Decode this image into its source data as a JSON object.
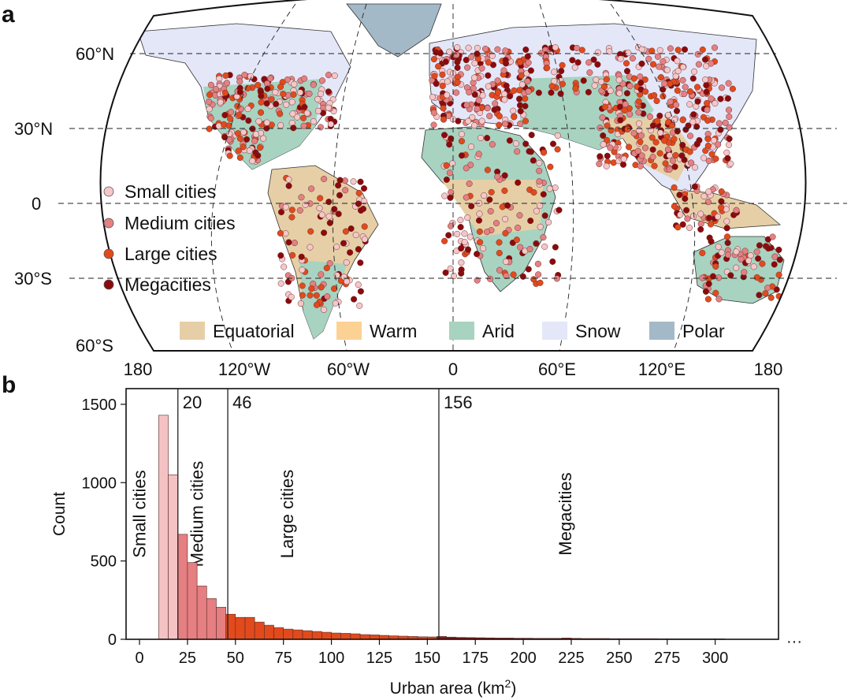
{
  "panel_a": {
    "label": "a",
    "lat_labels": [
      "60°N",
      "30°N",
      "0",
      "30°S",
      "60°S"
    ],
    "lon_labels": [
      "180",
      "120°W",
      "60°W",
      "0",
      "60°E",
      "120°E",
      "180"
    ],
    "city_legend": [
      {
        "label": "Small cities",
        "color": "#f5c7c9"
      },
      {
        "label": "Medium cities",
        "color": "#e38183"
      },
      {
        "label": "Large cities",
        "color": "#e24a1c"
      },
      {
        "label": "Megacities",
        "color": "#8b0a0c"
      }
    ],
    "climate_legend": [
      {
        "label": "Equatorial",
        "color": "#e6cfa6"
      },
      {
        "label": "Warm",
        "color": "#fbd294"
      },
      {
        "label": "Arid",
        "color": "#a8d3c0"
      },
      {
        "label": "Snow",
        "color": "#e4e7f8"
      },
      {
        "label": "Polar",
        "color": "#a4b9c7"
      }
    ]
  },
  "panel_b": {
    "label": "b",
    "ellipsis": "···",
    "chart_data": {
      "type": "bar",
      "xlabel": "Urban area (km",
      "xlabel_sup": "2",
      "xlabel_close": ")",
      "ylabel": "Count",
      "xlim": [
        -7,
        333
      ],
      "ylim": [
        0,
        1600
      ],
      "xticks": [
        0,
        25,
        50,
        75,
        100,
        125,
        150,
        175,
        200,
        225,
        250,
        275,
        300
      ],
      "yticks": [
        0,
        500,
        1000,
        1500
      ],
      "bin_width": 5,
      "bin_starts": [
        10,
        15,
        20,
        25,
        30,
        35,
        40,
        45,
        50,
        55,
        60,
        65,
        70,
        75,
        80,
        85,
        90,
        95,
        100,
        105,
        110,
        115,
        120,
        125,
        130,
        135,
        140,
        145,
        150,
        155,
        160,
        165,
        170,
        175,
        180,
        185,
        190,
        195,
        200,
        205,
        210,
        215,
        220,
        225,
        230,
        235,
        240,
        245,
        250,
        255,
        260,
        265,
        270,
        275,
        280,
        285,
        290,
        295,
        300
      ],
      "values": [
        1430,
        1050,
        670,
        490,
        340,
        260,
        205,
        160,
        140,
        140,
        110,
        90,
        75,
        65,
        60,
        55,
        50,
        45,
        40,
        38,
        35,
        30,
        28,
        25,
        22,
        20,
        18,
        16,
        15,
        18,
        14,
        12,
        11,
        10,
        9,
        8,
        8,
        7,
        7,
        6,
        6,
        6,
        8,
        6,
        5,
        5,
        5,
        4,
        4,
        4,
        4,
        4,
        3,
        3,
        3,
        3,
        3,
        3,
        3
      ],
      "thresholds": [
        {
          "x": 20,
          "label": "20"
        },
        {
          "x": 46,
          "label": "46"
        },
        {
          "x": 156,
          "label": "156"
        }
      ],
      "classes": [
        {
          "name": "Small cities",
          "from": 0,
          "to": 20,
          "color": "#f5c2c4",
          "label_x": 3
        },
        {
          "name": "Medium cities",
          "from": 20,
          "to": 46,
          "color": "#e57f81",
          "label_x": 33
        },
        {
          "name": "Large cities",
          "from": 46,
          "to": 156,
          "color": "#e24a1c",
          "label_x": 80
        },
        {
          "name": "Megacities",
          "from": 156,
          "to": 400,
          "color": "#8c1a14",
          "label_x": 225
        }
      ]
    }
  }
}
